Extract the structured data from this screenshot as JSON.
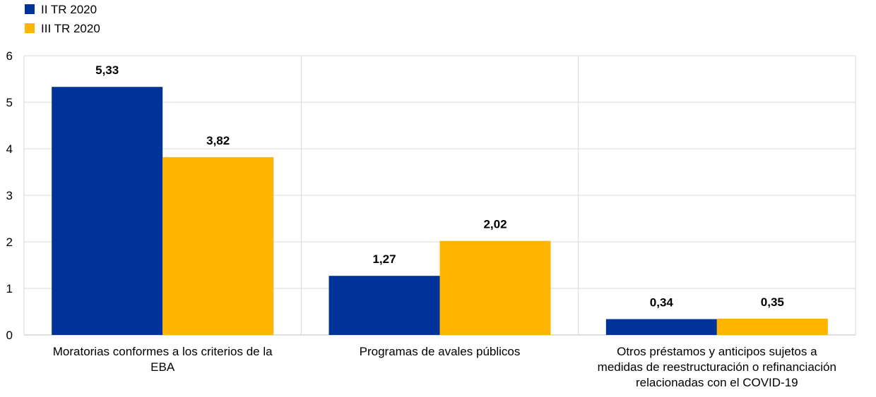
{
  "chart_data": {
    "type": "bar",
    "categories": [
      [
        "Moratorias conformes a los criterios de la",
        "EBA"
      ],
      [
        "Programas de avales públicos"
      ],
      [
        "Otros préstamos y anticipos sujetos a",
        "medidas de reestructuración o refinanciación",
        "relacionadas con el COVID-19"
      ]
    ],
    "series": [
      {
        "name": "II TR 2020",
        "color": "#003399",
        "values": [
          5.33,
          1.27,
          0.34
        ],
        "labels": [
          "5,33",
          "1,27",
          "0,34"
        ]
      },
      {
        "name": "III TR 2020",
        "color": "#FFB400",
        "values": [
          3.82,
          2.02,
          0.35
        ],
        "labels": [
          "3,82",
          "2,02",
          "0,35"
        ]
      }
    ],
    "ylim": [
      0,
      6
    ],
    "yticks": [
      "0",
      "1",
      "2",
      "3",
      "4",
      "5",
      "6"
    ],
    "grid": true,
    "legend": "top-left"
  }
}
